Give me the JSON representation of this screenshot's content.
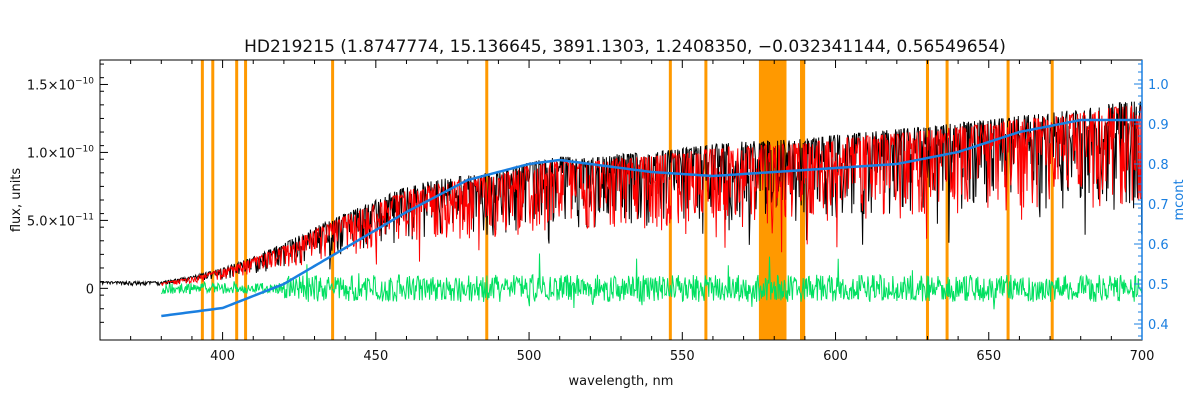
{
  "chart_data": {
    "type": "line",
    "title": "HD219215    (1.8747774, 15.136645, 3891.1303, 1.2408350, −0.032341144, 0.56549654)",
    "xlabel": "wavelength, nm",
    "ylabel": "flux, units",
    "ylabel_right": "mcont",
    "xlim": [
      360,
      700
    ],
    "ylim": [
      -3.8e-11,
      1.68e-10
    ],
    "ylim_right": [
      0.36,
      1.06
    ],
    "x_ticks": [
      {
        "v": 400,
        "label": "400"
      },
      {
        "v": 450,
        "label": "450"
      },
      {
        "v": 500,
        "label": "500"
      },
      {
        "v": 550,
        "label": "550"
      },
      {
        "v": 600,
        "label": "600"
      },
      {
        "v": 650,
        "label": "650"
      },
      {
        "v": 700,
        "label": "700"
      }
    ],
    "y_ticks": [
      {
        "v": 0,
        "base": "0",
        "exp": ""
      },
      {
        "v": 5e-11,
        "base": "5.0×10",
        "exp": "−11"
      },
      {
        "v": 1e-10,
        "base": "1.0×10",
        "exp": "−10"
      },
      {
        "v": 1.5e-10,
        "base": "1.5×10",
        "exp": "−10"
      }
    ],
    "y_right_ticks": [
      {
        "v": 0.4,
        "label": "0.4"
      },
      {
        "v": 0.5,
        "label": "0.5"
      },
      {
        "v": 0.6,
        "label": "0.6"
      },
      {
        "v": 0.7,
        "label": "0.7"
      },
      {
        "v": 0.8,
        "label": "0.8"
      },
      {
        "v": 0.9,
        "label": "0.9"
      },
      {
        "v": 1.0,
        "label": "1.0"
      }
    ],
    "masked_lines_nm": [
      393.4,
      396.8,
      404.6,
      407.5,
      435.9,
      486.2,
      546.1,
      557.7,
      588.9,
      589.6,
      630.0,
      636.4,
      656.3,
      670.7
    ],
    "masked_band_nm": [
      575,
      584
    ],
    "series": [
      {
        "role": "observed",
        "color": "#000000",
        "envelope": [
          [
            360,
            5e-12
          ],
          [
            380,
            5e-12
          ],
          [
            390,
            9e-12
          ],
          [
            400,
            1.5e-11
          ],
          [
            410,
            2.3e-11
          ],
          [
            420,
            3.3e-11
          ],
          [
            430,
            4.5e-11
          ],
          [
            440,
            5.5e-11
          ],
          [
            450,
            6.5e-11
          ],
          [
            460,
            7.5e-11
          ],
          [
            470,
            8e-11
          ],
          [
            480,
            8.3e-11
          ],
          [
            490,
            8.6e-11
          ],
          [
            500,
            9.3e-11
          ],
          [
            510,
            9.7e-11
          ],
          [
            520,
            9.6e-11
          ],
          [
            530,
            9.9e-11
          ],
          [
            540,
            1e-10
          ],
          [
            550,
            1.03e-10
          ],
          [
            560,
            1.06e-10
          ],
          [
            570,
            1.08e-10
          ],
          [
            580,
            1.09e-10
          ],
          [
            590,
            1.1e-10
          ],
          [
            600,
            1.13e-10
          ],
          [
            610,
            1.15e-10
          ],
          [
            620,
            1.17e-10
          ],
          [
            630,
            1.19e-10
          ],
          [
            640,
            1.22e-10
          ],
          [
            650,
            1.24e-10
          ],
          [
            660,
            1.27e-10
          ],
          [
            670,
            1.29e-10
          ],
          [
            680,
            1.32e-10
          ],
          [
            690,
            1.36e-10
          ],
          [
            700,
            1.38e-10
          ]
        ]
      },
      {
        "role": "model",
        "color": "#ff0000",
        "envelope": [
          [
            380,
            4e-12
          ],
          [
            390,
            8e-12
          ],
          [
            400,
            1.4e-11
          ],
          [
            410,
            2.2e-11
          ],
          [
            420,
            3.1e-11
          ],
          [
            430,
            4.3e-11
          ],
          [
            440,
            5.3e-11
          ],
          [
            450,
            6.2e-11
          ],
          [
            460,
            7.2e-11
          ],
          [
            470,
            7.7e-11
          ],
          [
            480,
            8e-11
          ],
          [
            490,
            8.3e-11
          ],
          [
            500,
            9e-11
          ],
          [
            510,
            9.4e-11
          ],
          [
            520,
            9.3e-11
          ],
          [
            530,
            9.6e-11
          ],
          [
            540,
            9.7e-11
          ],
          [
            550,
            1e-10
          ],
          [
            560,
            1.03e-10
          ],
          [
            570,
            1.05e-10
          ],
          [
            580,
            1.06e-10
          ],
          [
            590,
            1.07e-10
          ],
          [
            600,
            1.1e-10
          ],
          [
            610,
            1.12e-10
          ],
          [
            620,
            1.14e-10
          ],
          [
            630,
            1.16e-10
          ],
          [
            640,
            1.19e-10
          ],
          [
            650,
            1.21e-10
          ],
          [
            660,
            1.24e-10
          ],
          [
            670,
            1.26e-10
          ],
          [
            680,
            1.29e-10
          ],
          [
            690,
            1.33e-10
          ],
          [
            700,
            1.35e-10
          ]
        ]
      },
      {
        "role": "residual",
        "color": "#00e060",
        "center": 0,
        "amplitude": 1e-11
      },
      {
        "role": "continuum_mcont",
        "axis": "right",
        "color": "#1a7fe0",
        "points": [
          [
            380,
            0.42
          ],
          [
            400,
            0.44
          ],
          [
            420,
            0.5
          ],
          [
            440,
            0.59
          ],
          [
            460,
            0.68
          ],
          [
            480,
            0.76
          ],
          [
            500,
            0.8
          ],
          [
            510,
            0.81
          ],
          [
            520,
            0.8
          ],
          [
            540,
            0.78
          ],
          [
            560,
            0.77
          ],
          [
            580,
            0.78
          ],
          [
            600,
            0.79
          ],
          [
            620,
            0.8
          ],
          [
            640,
            0.83
          ],
          [
            660,
            0.88
          ],
          [
            680,
            0.91
          ],
          [
            700,
            0.91
          ]
        ]
      }
    ]
  }
}
